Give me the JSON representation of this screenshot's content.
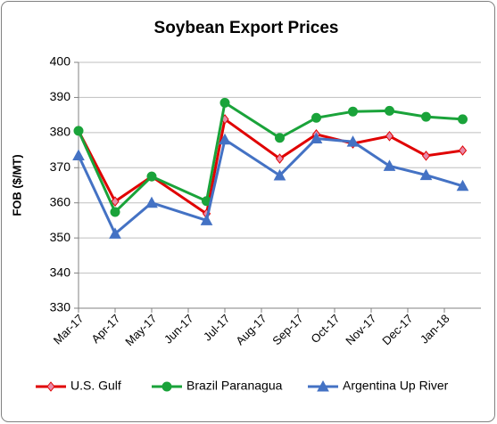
{
  "chart_data": {
    "type": "line",
    "title": "Soybean Export Prices",
    "y_label": "FOB ($/MT)",
    "x": [
      0,
      1,
      2,
      3.5,
      4,
      5.5,
      6.5,
      7.5,
      8.5,
      9.5,
      10.5
    ],
    "xlim": [
      0,
      11
    ],
    "xticks": [
      {
        "value": 0,
        "label": "Mar-17"
      },
      {
        "value": 1,
        "label": "Apr-17"
      },
      {
        "value": 2,
        "label": "May-17"
      },
      {
        "value": 3,
        "label": "Jun-17"
      },
      {
        "value": 4,
        "label": "Jul-17"
      },
      {
        "value": 5,
        "label": "Aug-17"
      },
      {
        "value": 6,
        "label": "Sep-17"
      },
      {
        "value": 7,
        "label": "Oct-17"
      },
      {
        "value": 8,
        "label": "Nov-17"
      },
      {
        "value": 9,
        "label": "Dec-17"
      },
      {
        "value": 10,
        "label": "Jan-18"
      }
    ],
    "ylim": [
      330,
      400
    ],
    "yticks": [
      330,
      340,
      350,
      360,
      370,
      380,
      390,
      400
    ],
    "grid": true,
    "legend": "bottom",
    "series": [
      {
        "name": "U.S. Gulf",
        "color": "#e00000",
        "marker": "diamond",
        "marker_color": "#e88aa8",
        "values": [
          380.5,
          360.4,
          367.5,
          356.9,
          383.8,
          372.6,
          379.5,
          376.9,
          379,
          373.4,
          374.9
        ]
      },
      {
        "name": "Brazil Paranagua",
        "color": "#1aa33a",
        "marker": "circle",
        "marker_color": "#1aa33a",
        "values": [
          380.5,
          357.4,
          367.5,
          360.5,
          388.5,
          378.5,
          384.2,
          386,
          386.2,
          384.5,
          383.8
        ]
      },
      {
        "name": "Argentina Up River",
        "color": "#4472c4",
        "marker": "triangle",
        "marker_color": "#4472c4",
        "values": [
          373.5,
          351.2,
          360,
          355,
          378,
          367.8,
          378.3,
          377.4,
          370.5,
          367.9,
          364.8
        ]
      }
    ]
  }
}
